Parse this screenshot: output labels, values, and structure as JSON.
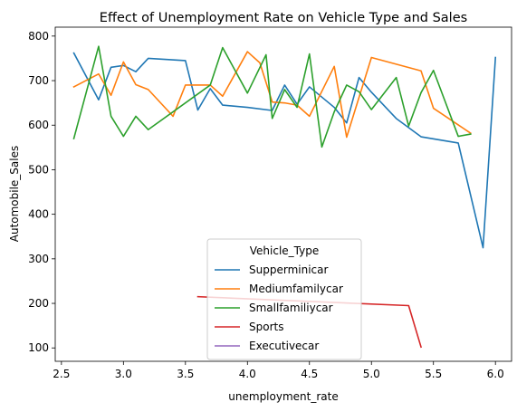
{
  "chart_data": {
    "type": "line",
    "title": "Effect of Unemployment Rate on Vehicle Type and Sales",
    "xlabel": "unemployment_rate",
    "ylabel": "Automobile_Sales",
    "xlim": [
      2.45,
      6.13
    ],
    "ylim": [
      70,
      820
    ],
    "x_ticks": [
      2.5,
      3.0,
      3.5,
      4.0,
      4.5,
      5.0,
      5.5,
      6.0
    ],
    "x_tick_labels": [
      "2.5",
      "3.0",
      "3.5",
      "4.0",
      "4.5",
      "5.0",
      "5.5",
      "6.0"
    ],
    "y_ticks": [
      100,
      200,
      300,
      400,
      500,
      600,
      700,
      800
    ],
    "y_tick_labels": [
      "100",
      "200",
      "300",
      "400",
      "500",
      "600",
      "700",
      "800"
    ],
    "grid": false,
    "legend": {
      "title": "Vehicle_Type",
      "placement": "lower center"
    },
    "series": [
      {
        "name": "Supperminicar",
        "color": "#1f77b4",
        "x": [
          2.6,
          2.8,
          2.9,
          3.0,
          3.1,
          3.2,
          3.5,
          3.6,
          3.7,
          3.8,
          4.0,
          4.2,
          4.3,
          4.4,
          4.5,
          4.7,
          4.8,
          4.9,
          5.0,
          5.2,
          5.4,
          5.7,
          5.9,
          6.0
        ],
        "y": [
          762,
          657,
          730,
          734,
          720,
          750,
          745,
          634,
          682,
          645,
          640,
          633,
          690,
          647,
          686,
          640,
          605,
          707,
          674,
          615,
          574,
          560,
          325,
          752
        ]
      },
      {
        "name": "Mediumfamilycar",
        "color": "#ff7f0e",
        "x": [
          2.6,
          2.8,
          2.9,
          3.0,
          3.1,
          3.2,
          3.4,
          3.5,
          3.7,
          3.8,
          4.0,
          4.1,
          4.2,
          4.3,
          4.4,
          4.5,
          4.7,
          4.8,
          5.0,
          5.4,
          5.5,
          5.8
        ],
        "y": [
          686,
          715,
          667,
          742,
          691,
          680,
          620,
          690,
          690,
          665,
          765,
          740,
          652,
          650,
          645,
          620,
          732,
          573,
          752,
          722,
          638,
          582
        ]
      },
      {
        "name": "Smallfamiliycar",
        "color": "#2ca02c",
        "x": [
          2.6,
          2.8,
          2.9,
          3.0,
          3.1,
          3.2,
          3.7,
          3.8,
          4.0,
          4.15,
          4.2,
          4.3,
          4.4,
          4.5,
          4.6,
          4.7,
          4.8,
          4.9,
          5.0,
          5.2,
          5.3,
          5.4,
          5.5,
          5.7,
          5.8
        ],
        "y": [
          570,
          777,
          620,
          575,
          620,
          590,
          690,
          774,
          672,
          758,
          615,
          680,
          640,
          760,
          551,
          630,
          690,
          675,
          635,
          707,
          598,
          673,
          723,
          575,
          580
        ]
      },
      {
        "name": "Sports",
        "color": "#d62728",
        "x": [
          3.6,
          5.3,
          5.4
        ],
        "y": [
          215,
          195,
          102
        ]
      },
      {
        "name": "Executivecar",
        "color": "#9467bd",
        "x": [],
        "y": []
      }
    ]
  }
}
